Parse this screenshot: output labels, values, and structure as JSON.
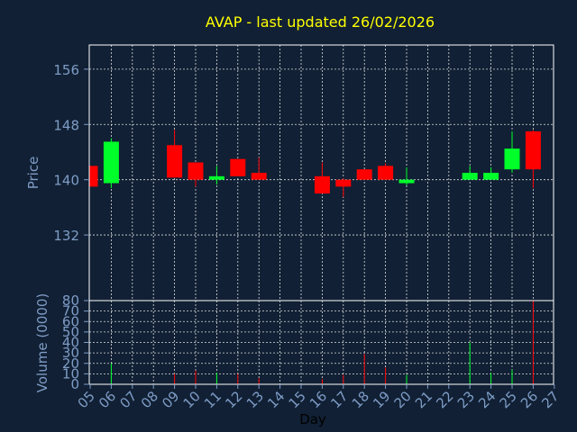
{
  "chart_data": {
    "type": "candlestick",
    "title": "AVAP - last updated 26/02/2026",
    "xlabel": "Day",
    "colors": {
      "background": "#112034",
      "plot_border": "#ffffff",
      "grid": "#ffffff",
      "title": "#ffff00",
      "axis_text": "#7e9cc6",
      "xlabel_text": "#000000",
      "up": "#00ff2a",
      "down": "#ff0000"
    },
    "grid": true,
    "x_ticks": [
      "05",
      "06",
      "07",
      "08",
      "09",
      "10",
      "11",
      "12",
      "13",
      "14",
      "15",
      "16",
      "17",
      "18",
      "19",
      "20",
      "21",
      "22",
      "23",
      "24",
      "25",
      "26",
      "27"
    ],
    "price_panel": {
      "ylabel": "Price",
      "ylim": [
        122.5,
        159.5
      ],
      "yticks": [
        132,
        140,
        148,
        156
      ]
    },
    "volume_panel": {
      "ylabel": "Volume (0000)",
      "ylim": [
        0,
        80
      ],
      "yticks": [
        0,
        10,
        20,
        30,
        40,
        50,
        60,
        70,
        80
      ]
    },
    "candles": [
      {
        "day": "05",
        "open": 142.0,
        "high": 142.0,
        "low": 139.0,
        "close": 139.0
      },
      {
        "day": "06",
        "open": 139.5,
        "high": 146.0,
        "low": 138.8,
        "close": 145.5
      },
      {
        "day": "09",
        "open": 145.0,
        "high": 147.2,
        "low": 140.3,
        "close": 140.3
      },
      {
        "day": "10",
        "open": 142.5,
        "high": 142.5,
        "low": 139.0,
        "close": 140.0
      },
      {
        "day": "11",
        "open": 140.0,
        "high": 142.0,
        "low": 139.3,
        "close": 140.5
      },
      {
        "day": "12",
        "open": 143.0,
        "high": 143.0,
        "low": 140.5,
        "close": 140.5
      },
      {
        "day": "13",
        "open": 141.0,
        "high": 143.2,
        "low": 140.0,
        "close": 140.0
      },
      {
        "day": "16",
        "open": 140.5,
        "high": 142.5,
        "low": 138.0,
        "close": 138.0
      },
      {
        "day": "17",
        "open": 140.0,
        "high": 140.2,
        "low": 137.5,
        "close": 139.0
      },
      {
        "day": "18",
        "open": 141.5,
        "high": 141.5,
        "low": 140.0,
        "close": 140.0
      },
      {
        "day": "19",
        "open": 142.0,
        "high": 142.4,
        "low": 140.0,
        "close": 140.0
      },
      {
        "day": "20",
        "open": 139.5,
        "high": 141.8,
        "low": 139.2,
        "close": 140.0
      },
      {
        "day": "23",
        "open": 140.0,
        "high": 142.0,
        "low": 140.0,
        "close": 141.0
      },
      {
        "day": "24",
        "open": 140.0,
        "high": 141.8,
        "low": 140.0,
        "close": 141.0
      },
      {
        "day": "25",
        "open": 141.5,
        "high": 147.0,
        "low": 141.0,
        "close": 144.5
      },
      {
        "day": "26",
        "open": 147.0,
        "high": 147.2,
        "low": 138.8,
        "close": 141.5
      }
    ],
    "volume": [
      {
        "day": "06",
        "value": 20,
        "dir": "up"
      },
      {
        "day": "09",
        "value": 10,
        "dir": "down"
      },
      {
        "day": "10",
        "value": 13,
        "dir": "down"
      },
      {
        "day": "11",
        "value": 11,
        "dir": "up"
      },
      {
        "day": "12",
        "value": 10,
        "dir": "down"
      },
      {
        "day": "13",
        "value": 6,
        "dir": "down"
      },
      {
        "day": "16",
        "value": 5,
        "dir": "down"
      },
      {
        "day": "17",
        "value": 9,
        "dir": "down"
      },
      {
        "day": "18",
        "value": 29,
        "dir": "down"
      },
      {
        "day": "19",
        "value": 16,
        "dir": "down"
      },
      {
        "day": "20",
        "value": 9,
        "dir": "up"
      },
      {
        "day": "23",
        "value": 40,
        "dir": "up"
      },
      {
        "day": "24",
        "value": 11,
        "dir": "up"
      },
      {
        "day": "25",
        "value": 14,
        "dir": "up"
      },
      {
        "day": "26",
        "value": 80,
        "dir": "down"
      }
    ]
  }
}
